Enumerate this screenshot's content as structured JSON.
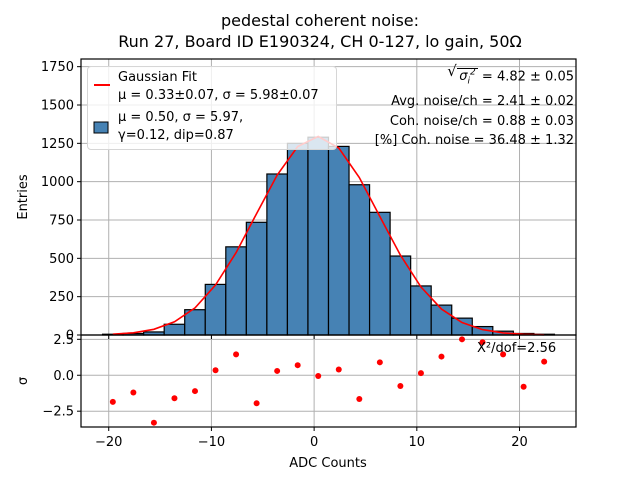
{
  "title": {
    "line1": "pedestal coherent noise:",
    "line2": "Run 27, Board ID E190324, CH 0-127, lo gain, 50Ω"
  },
  "legend": {
    "fit_label": "Gaussian Fit",
    "fit_params": "μ = 0.33±0.07, σ = 5.98±0.07",
    "hist_params_1": "μ = 0.50, σ = 5.97,",
    "hist_params_2": "γ=0.12, dip=0.87"
  },
  "stats": {
    "sigma_sq_value": " = 4.82 ± 0.05",
    "avg_noise": "Avg. noise/ch = 2.41 ± 0.02",
    "coh_noise": "Coh. noise/ch = 0.88 ± 0.03",
    "coh_pct": "[%] Coh. noise = 36.48  ± 1.32"
  },
  "chi2_label": "X²/dof=2.56",
  "colors": {
    "bar_fill": "#4682b4",
    "bar_edge": "#000000",
    "fit_line": "#ff0000",
    "residual_points": "#ff0000",
    "grid": "#b0b0b0"
  },
  "chart_data": [
    {
      "type": "bar",
      "title": "pedestal coherent noise: Run 27, Board ID E190324, CH 0-127, lo gain, 50Ω",
      "xlabel": "",
      "ylabel": "Entries",
      "xlim": [
        -22.7,
        25.5
      ],
      "ylim": [
        0,
        1800
      ],
      "yticks": [
        0,
        250,
        500,
        750,
        1000,
        1250,
        1500,
        1750
      ],
      "ytick_labels": [
        "0",
        "250",
        "500",
        "750",
        "1000",
        "1250",
        "1500",
        "1750"
      ],
      "xticks": [
        -20,
        -10,
        0,
        10,
        20
      ],
      "grid": true,
      "bin_width": 2,
      "bin_centers": [
        -19.6,
        -17.6,
        -15.6,
        -13.6,
        -11.6,
        -9.6,
        -7.6,
        -5.6,
        -3.6,
        -1.6,
        0.4,
        2.4,
        4.4,
        6.4,
        8.4,
        10.4,
        12.4,
        14.4,
        16.4,
        18.4,
        20.4,
        22.4
      ],
      "values": [
        5,
        10,
        20,
        70,
        165,
        330,
        575,
        735,
        1050,
        1250,
        1290,
        1230,
        980,
        800,
        515,
        320,
        195,
        110,
        55,
        25,
        10,
        5
      ],
      "fit": {
        "name": "Gaussian Fit",
        "mu": 0.33,
        "sigma": 5.98,
        "amplitude": 1295
      },
      "legend": [
        "Gaussian Fit",
        "μ = 0.50, σ = 5.97, γ=0.12, dip=0.87"
      ],
      "legend_position": "top-left"
    },
    {
      "type": "scatter",
      "xlabel": "ADC Counts",
      "ylabel": "σ",
      "xlim": [
        -22.7,
        25.5
      ],
      "ylim": [
        -3.6,
        2.8
      ],
      "yticks": [
        -2.5,
        0.0,
        2.5
      ],
      "ytick_labels": [
        "−2.5",
        "0.0",
        "2.5"
      ],
      "xticks": [
        -20,
        -10,
        0,
        10,
        20
      ],
      "xtick_labels": [
        "−20",
        "−10",
        "0",
        "10",
        "20"
      ],
      "grid": true,
      "x": [
        -19.6,
        -17.6,
        -15.6,
        -13.6,
        -11.6,
        -9.6,
        -7.6,
        -5.6,
        -3.6,
        -1.6,
        0.4,
        2.4,
        4.4,
        6.4,
        8.4,
        10.4,
        12.4,
        14.4,
        16.4,
        18.4,
        20.4,
        22.4
      ],
      "y": [
        -1.85,
        -1.2,
        -3.3,
        -1.6,
        -1.1,
        0.35,
        1.45,
        -1.95,
        0.3,
        0.7,
        -0.05,
        0.4,
        -1.65,
        0.9,
        -0.75,
        0.15,
        1.3,
        2.5,
        2.3,
        1.45,
        -0.8,
        0.95
      ],
      "annotation": "X²/dof=2.56"
    }
  ]
}
